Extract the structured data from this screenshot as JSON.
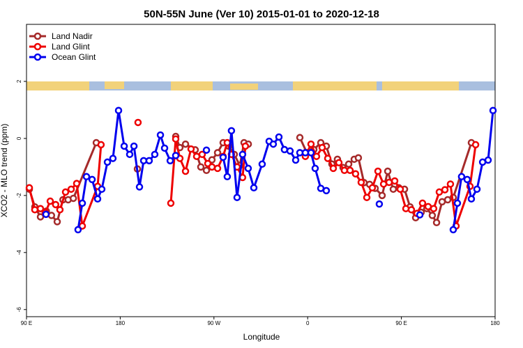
{
  "chart_data": {
    "type": "line",
    "title": "50N-55N June (Ver 10)   2015-01-01 to 2020-12-18",
    "xlabel": "Longitude",
    "ylabel": "XCO2 - MLO trend (ppm)",
    "xlim": [
      90,
      540
    ],
    "ylim": [
      -6.25,
      4
    ],
    "xticks": [
      {
        "value": 90,
        "label": "90 E"
      },
      {
        "value": 180,
        "label": "180"
      },
      {
        "value": 270,
        "label": "90 W"
      },
      {
        "value": 360,
        "label": "0"
      },
      {
        "value": 450,
        "label": "90 E"
      },
      {
        "value": 540,
        "label": "180"
      }
    ],
    "yticks": [
      2,
      0,
      -2,
      -4,
      -6
    ],
    "legend": "upper left",
    "series": [
      {
        "name": "Land Nadir",
        "color": "#a52a2a",
        "x": [
          92.7,
          98,
          103.4,
          109,
          114,
          119.5,
          125,
          130,
          135,
          157,
          null,
          196.5,
          null,
          233.3,
          237.3,
          242.7,
          252,
          257.4,
          262.8,
          268.1,
          273.5,
          278.8,
          284.2,
          289.5,
          294.9,
          298.9,
          303,
          null,
          352.5,
          359.2,
          365.9,
          372.6,
          377.9,
          383.3,
          388.6,
          394,
          399.4,
          404.7,
          408.7,
          414.1,
          419.5,
          424.8,
          431.5,
          436.9,
          442.2,
          447.6,
          453,
          458.3,
          463.7,
          469,
          474.4,
          479.7,
          483.8,
          489.1,
          494.5,
          499.8,
          517.2
        ],
        "values": [
          -1.78,
          -2.4,
          -2.75,
          -2.55,
          -2.7,
          -2.92,
          -2.15,
          -2.15,
          -2.1,
          -0.15,
          null,
          -1.07,
          null,
          0.07,
          -0.32,
          -0.2,
          -0.4,
          -1.0,
          -1.12,
          -0.75,
          -0.5,
          -0.15,
          -0.27,
          -0.56,
          -0.95,
          -0.15,
          -0.2,
          null,
          0.03,
          -0.5,
          -0.39,
          -0.15,
          -0.27,
          -0.9,
          -0.73,
          -1.02,
          -0.9,
          -0.73,
          -0.68,
          -1.55,
          -1.61,
          -1.75,
          -2.0,
          -1.15,
          -1.78,
          -1.73,
          -1.78,
          -2.4,
          -2.78,
          -2.59,
          -2.46,
          -2.7,
          -2.95,
          -2.22,
          -2.15,
          -2.07,
          -0.15
        ]
      },
      {
        "name": "Land Glint",
        "color": "#ee0000",
        "x": [
          92.7,
          98,
          103.4,
          108,
          112.8,
          118,
          122.1,
          127.5,
          132.9,
          138.2,
          143.6,
          158.3,
          161.6,
          null,
          197.1,
          null,
          228.6,
          233.3,
          237.3,
          242.7,
          248,
          253.4,
          258.7,
          264.1,
          268.1,
          273.5,
          278.8,
          282.8,
          286.8,
          292.2,
          297.5,
          300.2,
          null,
          357.8,
          363.2,
          368.5,
          373.9,
          379.3,
          384.6,
          390,
          395.3,
          400.7,
          406,
          411.4,
          416.8,
          422.1,
          427.5,
          432.9,
          438.2,
          443.6,
          448.9,
          454.3,
          459.6,
          465,
          470.3,
          475.7,
          481,
          486.4,
          491.8,
          497.1,
          502.5,
          515.9,
          521.3
        ],
        "values": [
          -1.73,
          -2.5,
          -2.46,
          -2.6,
          -2.2,
          -2.32,
          -2.5,
          -1.88,
          -1.78,
          -1.58,
          -3.07,
          -1.68,
          -0.22,
          null,
          0.56,
          null,
          -2.27,
          -0.02,
          -0.7,
          -1.15,
          -0.37,
          -0.63,
          -0.56,
          -0.88,
          -1.0,
          -1.05,
          -0.63,
          -0.15,
          -0.56,
          -1.0,
          -1.37,
          -0.27,
          null,
          -0.63,
          -0.2,
          -0.63,
          -0.32,
          -0.7,
          -1.05,
          -0.85,
          -1.12,
          -1.12,
          -1.24,
          -1.54,
          -2.07,
          -1.73,
          -1.15,
          -1.6,
          -1.54,
          -1.49,
          -1.78,
          -2.46,
          -2.5,
          -2.63,
          -2.27,
          -2.39,
          -2.46,
          -1.88,
          -1.8,
          -1.6,
          -3.07,
          -1.68,
          -0.22
        ]
      },
      {
        "name": "Ocean Glint",
        "color": "#0000ee",
        "x": [
          108.7,
          null,
          139.5,
          143.6,
          147.6,
          153,
          158.3,
          162.3,
          167.7,
          173,
          178.4,
          183.8,
          189.1,
          193.2,
          198.5,
          202.5,
          207.8,
          213.2,
          218.6,
          222.6,
          228,
          233.3,
          null,
          262.8,
          null,
          278.8,
          282.8,
          286.8,
          292.2,
          297.5,
          302.9,
          308.3,
          316.3,
          323,
          327,
          332.4,
          337.7,
          343.1,
          348.5,
          352.5,
          357.8,
          363.2,
          367.2,
          372.6,
          377.9,
          null,
          428.8,
          null,
          467.7,
          null,
          499.8,
          503.8,
          507.8,
          513.2,
          517.2,
          522.6,
          528,
          533.3,
          538
        ],
        "values": [
          -2.66,
          null,
          -3.2,
          -2.27,
          -1.34,
          -1.44,
          -2.12,
          -1.78,
          -0.83,
          -0.7,
          0.98,
          -0.27,
          -0.56,
          -0.27,
          -1.7,
          -0.78,
          -0.78,
          -0.56,
          0.12,
          -0.34,
          -0.78,
          -0.6,
          null,
          -0.41,
          null,
          -0.66,
          -1.34,
          0.27,
          -2.07,
          -0.56,
          -1.05,
          -1.73,
          -0.9,
          -0.1,
          -0.2,
          0.05,
          -0.39,
          -0.44,
          -0.76,
          -0.5,
          -0.5,
          -0.5,
          -1.05,
          -1.75,
          -1.83,
          null,
          -2.3,
          null,
          -2.68,
          null,
          -3.2,
          -2.27,
          -1.34,
          -1.44,
          -2.12,
          -1.78,
          -0.83,
          -0.76,
          0.98
        ]
      }
    ]
  }
}
